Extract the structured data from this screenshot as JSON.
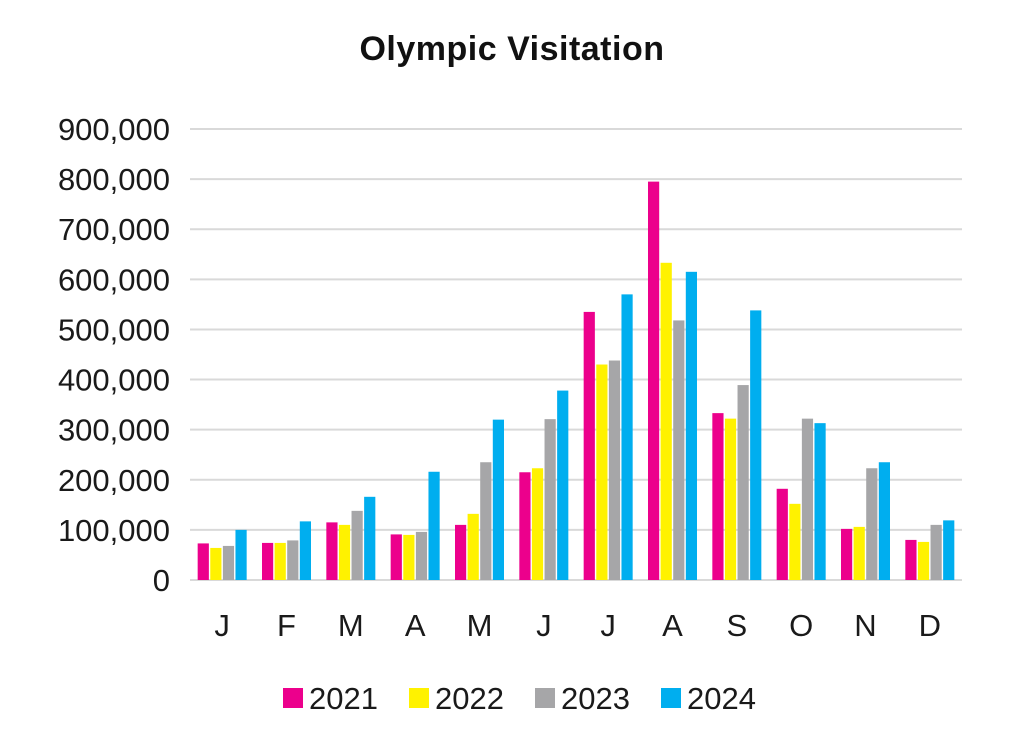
{
  "chart_data": {
    "type": "bar",
    "title": "Olympic Visitation",
    "xlabel": "",
    "ylabel": "",
    "categories": [
      "J",
      "F",
      "M",
      "A",
      "M",
      "J",
      "J",
      "A",
      "S",
      "O",
      "N",
      "D"
    ],
    "ylim": [
      0,
      900000
    ],
    "yticks": [
      "0",
      "100,000",
      "200,000",
      "300,000",
      "400,000",
      "500,000",
      "600,000",
      "700,000",
      "800,000",
      "900,000"
    ],
    "grid": true,
    "legend_position": "bottom",
    "series": [
      {
        "name": "2021",
        "color": "#ec008c",
        "values": [
          73000,
          74000,
          115000,
          91000,
          110000,
          215000,
          535000,
          795000,
          333000,
          182000,
          102000,
          80000
        ]
      },
      {
        "name": "2022",
        "color": "#fff200",
        "values": [
          64000,
          74000,
          110000,
          90000,
          132000,
          223000,
          430000,
          633000,
          322000,
          152000,
          106000,
          76000
        ]
      },
      {
        "name": "2023",
        "color": "#a6a6a8",
        "values": [
          68000,
          79000,
          138000,
          96000,
          235000,
          321000,
          438000,
          518000,
          389000,
          322000,
          223000,
          110000
        ]
      },
      {
        "name": "2024",
        "color": "#00aeef",
        "values": [
          100000,
          117000,
          166000,
          216000,
          320000,
          378000,
          570000,
          615000,
          538000,
          313000,
          235000,
          119000
        ]
      }
    ]
  }
}
